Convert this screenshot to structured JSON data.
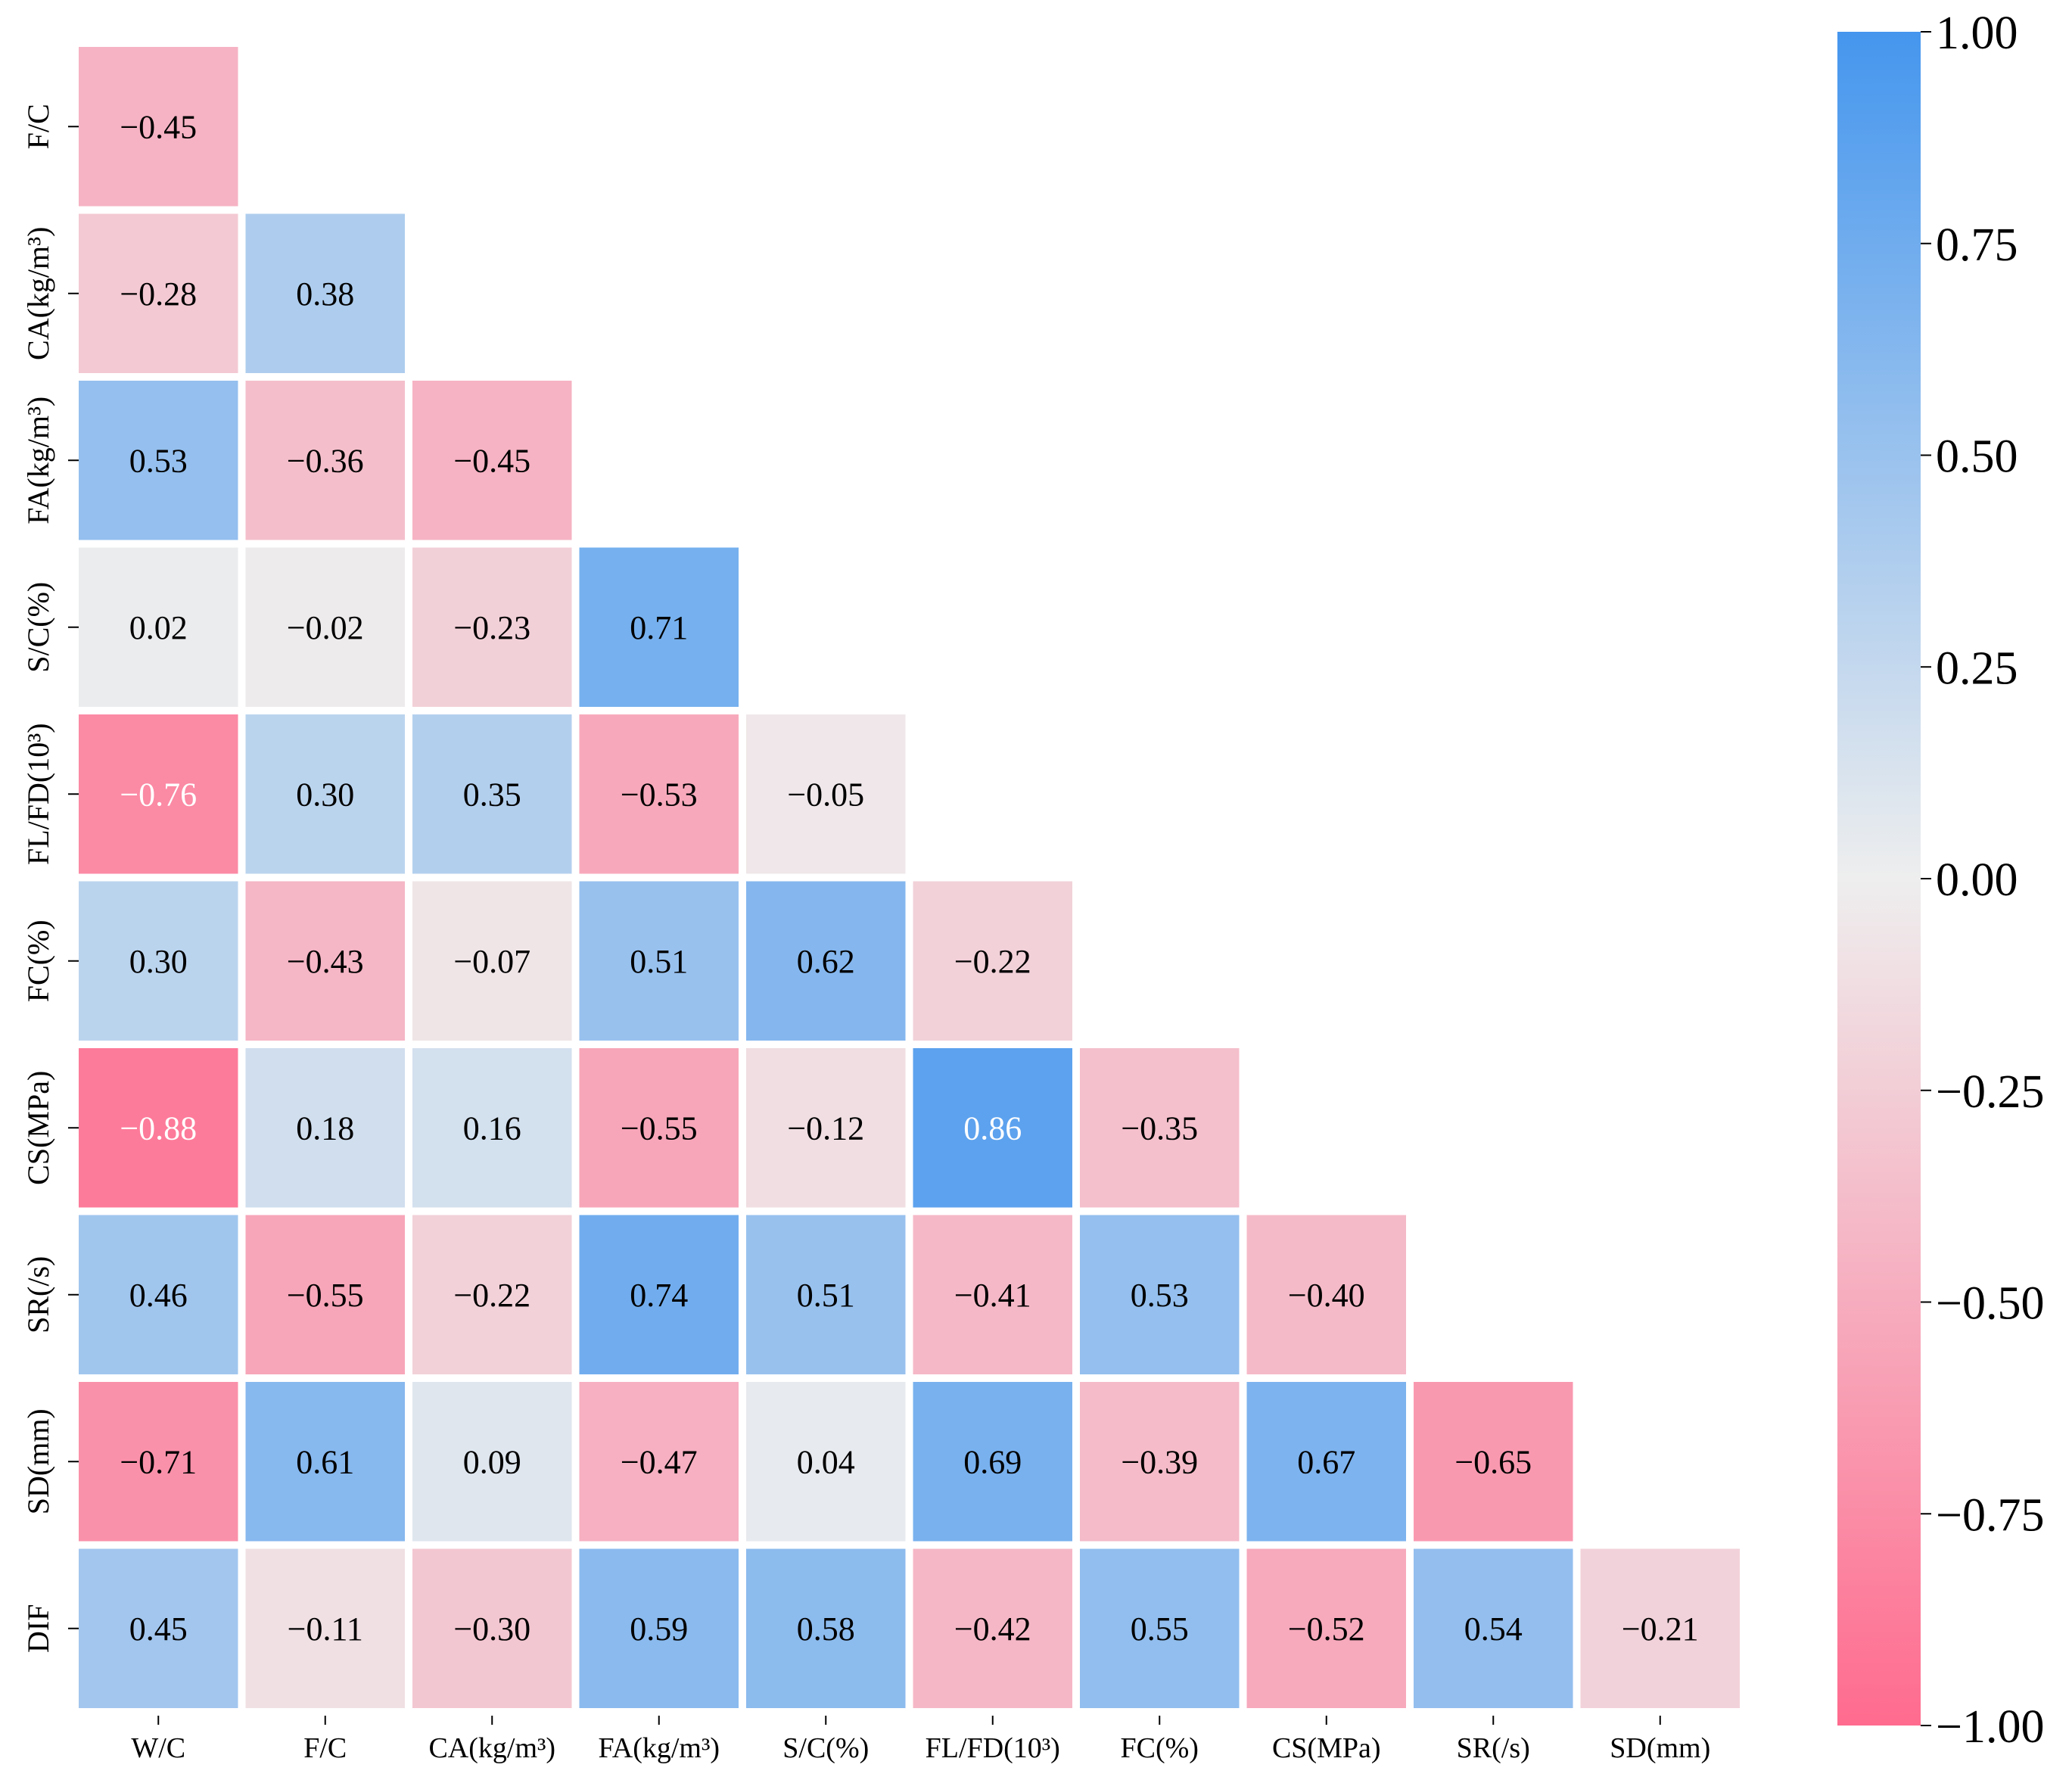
{
  "chart_data": {
    "type": "heatmap",
    "title": "",
    "xlabel": "",
    "ylabel": "",
    "x_labels": [
      "W/C",
      "F/C",
      "CA(kg/m³)",
      "FA(kg/m³)",
      "S/C(%)",
      "FL/FD(10³)",
      "FC(%)",
      "CS(MPa)",
      "SR(/s)",
      "SD(mm)"
    ],
    "y_labels": [
      "F/C",
      "CA(kg/m³)",
      "FA(kg/m³)",
      "S/C(%)",
      "FL/FD(10³)",
      "FC(%)",
      "CS(MPa)",
      "SR(/s)",
      "SD(mm)",
      "DIF"
    ],
    "values": [
      [
        -0.45
      ],
      [
        -0.28,
        0.38
      ],
      [
        0.53,
        -0.36,
        -0.45
      ],
      [
        0.02,
        -0.02,
        -0.23,
        0.71
      ],
      [
        -0.76,
        0.3,
        0.35,
        -0.53,
        -0.05
      ],
      [
        0.3,
        -0.43,
        -0.07,
        0.51,
        0.62,
        -0.22
      ],
      [
        -0.88,
        0.18,
        0.16,
        -0.55,
        -0.12,
        0.86,
        -0.35
      ],
      [
        0.46,
        -0.55,
        -0.22,
        0.74,
        0.51,
        -0.41,
        0.53,
        -0.4
      ],
      [
        -0.71,
        0.61,
        0.09,
        -0.47,
        0.04,
        0.69,
        -0.39,
        0.67,
        -0.65
      ],
      [
        0.45,
        -0.11,
        -0.3,
        0.59,
        0.58,
        -0.42,
        0.55,
        -0.52,
        0.54,
        -0.21
      ]
    ],
    "value_labels": [
      [
        "−0.45"
      ],
      [
        "−0.28",
        "0.38"
      ],
      [
        "0.53",
        "−0.36",
        "−0.45"
      ],
      [
        "0.02",
        "−0.02",
        "−0.23",
        "0.71"
      ],
      [
        "−0.76",
        "0.30",
        "0.35",
        "−0.53",
        "−0.05"
      ],
      [
        "0.30",
        "−0.43",
        "−0.07",
        "0.51",
        "0.62",
        "−0.22"
      ],
      [
        "−0.88",
        "0.18",
        "0.16",
        "−0.55",
        "−0.12",
        "0.86",
        "−0.35"
      ],
      [
        "0.46",
        "−0.55",
        "−0.22",
        "0.74",
        "0.51",
        "−0.41",
        "0.53",
        "−0.40"
      ],
      [
        "−0.71",
        "0.61",
        "0.09",
        "−0.47",
        "0.04",
        "0.69",
        "−0.39",
        "0.67",
        "−0.65"
      ],
      [
        "0.45",
        "−0.11",
        "−0.30",
        "0.59",
        "0.58",
        "−0.42",
        "0.55",
        "−0.52",
        "0.54",
        "−0.21"
      ]
    ],
    "vmin": -1.0,
    "vmax": 1.0,
    "colorbar": {
      "ticks": [
        1.0,
        0.75,
        0.5,
        0.25,
        0.0,
        -0.25,
        -0.5,
        -0.75,
        -1.0
      ],
      "tick_labels": [
        "1.00",
        "0.75",
        "0.50",
        "0.25",
        "0.00",
        "−0.25",
        "−0.50",
        "−0.75",
        "−1.00"
      ],
      "placement": "right"
    },
    "colors": {
      "negative_end": "#ff6b8e",
      "center": "#eeeeee",
      "positive_end": "#4596ee",
      "text_dark": "#000000",
      "text_light": "#ffffff"
    },
    "grid": false,
    "mask": "upper-triangle"
  }
}
